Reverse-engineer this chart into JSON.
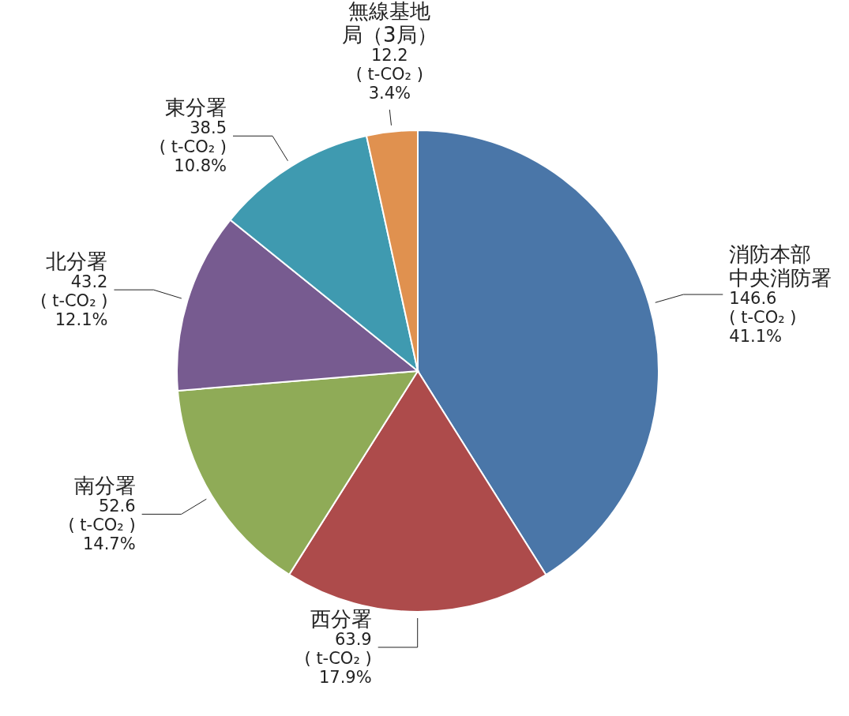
{
  "chart_data": {
    "type": "pie",
    "categories": [
      "消防本部中央消防署",
      "西分署",
      "南分署",
      "北分署",
      "東分署",
      "無線基地局（3局）"
    ],
    "values": [
      146.6,
      63.9,
      52.6,
      43.2,
      38.5,
      12.2
    ],
    "colors": [
      "#4a76a8",
      "#ad4b4b",
      "#8fab57",
      "#775b90",
      "#3f9ab0",
      "#e0914f"
    ],
    "value_labels": [
      "146.6\n( t-CO₂ )\n41.1%",
      "63.9\n( t-CO₂ )\n17.9%",
      "52.6\n( t-CO₂ )\n14.7%",
      "43.2\n( t-CO₂ )\n12.1%",
      "38.5\n( t-CO₂ )\n10.8%",
      "12.2\n( t-CO₂ )\n3.4%"
    ],
    "legend": false
  }
}
